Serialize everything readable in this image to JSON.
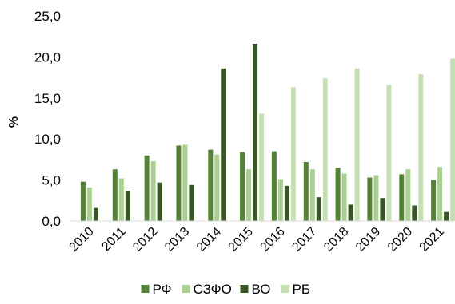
{
  "chart_data": {
    "type": "bar",
    "ylabel": "%",
    "ylim": [
      0,
      25
    ],
    "yticks": [
      "0,0",
      "5,0",
      "10,0",
      "15,0",
      "20,0",
      "25,0"
    ],
    "ytick_values": [
      0,
      5,
      10,
      15,
      20,
      25
    ],
    "grid": false,
    "legend": "bottom",
    "categories": [
      "2010",
      "2011",
      "2012",
      "2013",
      "2014",
      "2015",
      "2016",
      "2017",
      "2018",
      "2019",
      "2020",
      "2021"
    ],
    "series": [
      {
        "name": "РФ",
        "color": "#548235",
        "values": [
          4.8,
          6.3,
          8.0,
          9.2,
          8.7,
          8.4,
          8.5,
          7.2,
          6.5,
          5.3,
          5.7,
          5.0
        ]
      },
      {
        "name": "СЗФО",
        "color": "#a9d18e",
        "values": [
          4.1,
          5.2,
          7.3,
          9.3,
          8.1,
          6.3,
          5.1,
          6.3,
          5.8,
          5.6,
          6.3,
          6.6
        ]
      },
      {
        "name": "ВО",
        "color": "#375623",
        "values": [
          1.6,
          3.7,
          4.7,
          4.4,
          18.6,
          21.6,
          4.3,
          2.9,
          2.0,
          2.8,
          1.9,
          1.1
        ]
      },
      {
        "name": "РБ",
        "color": "#c5e0b4",
        "values": [
          0,
          0,
          0,
          0,
          0,
          13.1,
          16.3,
          17.4,
          18.6,
          16.6,
          17.9,
          19.8
        ]
      }
    ]
  }
}
